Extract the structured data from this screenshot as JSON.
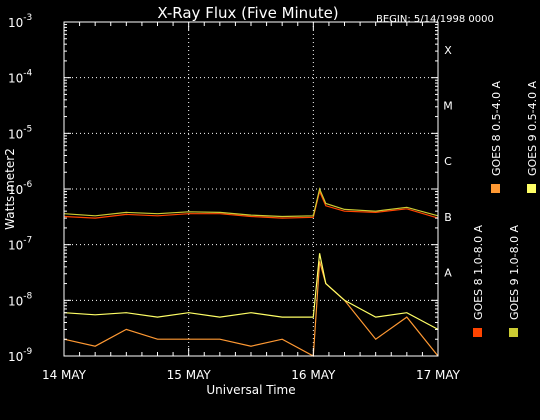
{
  "chart_data": {
    "type": "line",
    "title": "X-Ray Flux (Five Minute)",
    "begin_label": "BEGIN: 5/14/1998 0000",
    "xlabel": "Universal Time",
    "ylabel": "Watts meter2",
    "y_scale": "log",
    "ylim": [
      1e-09,
      0.001
    ],
    "y_ticks": [
      {
        "base": "10",
        "exp": "-3",
        "value": 0.001
      },
      {
        "base": "10",
        "exp": "-4",
        "value": 0.0001
      },
      {
        "base": "10",
        "exp": "-5",
        "value": 1e-05
      },
      {
        "base": "10",
        "exp": "-6",
        "value": 1e-06
      },
      {
        "base": "10",
        "exp": "-7",
        "value": 1e-07
      },
      {
        "base": "10",
        "exp": "-8",
        "value": 1e-08
      },
      {
        "base": "10",
        "exp": "-9",
        "value": 1e-09
      }
    ],
    "xlim": [
      "1998-05-14 00:00",
      "1998-05-17 00:00"
    ],
    "x_ticks": [
      {
        "label": "14 MAY",
        "day": 0
      },
      {
        "label": "15 MAY",
        "day": 1
      },
      {
        "label": "16 MAY",
        "day": 2
      },
      {
        "label": "17 MAY",
        "day": 3
      }
    ],
    "flare_classes": [
      {
        "label": "X",
        "value": 0.0001
      },
      {
        "label": "M",
        "value": 1e-05
      },
      {
        "label": "C",
        "value": 1e-06
      },
      {
        "label": "B",
        "value": 1e-07
      },
      {
        "label": "A",
        "value": 1e-08
      }
    ],
    "grid": true,
    "legend_position": "right-vertical",
    "series": [
      {
        "name": "GOES 8 1.0-8.0 A",
        "color": "#ff4400",
        "x": [
          0,
          0.25,
          0.5,
          0.75,
          1.0,
          1.25,
          1.5,
          1.75,
          2.0,
          2.05,
          2.1,
          2.25,
          2.5,
          2.75,
          3.0
        ],
        "y": [
          3.2e-07,
          3e-07,
          3.5e-07,
          3.3e-07,
          3.6e-07,
          3.6e-07,
          3.2e-07,
          3e-07,
          3.1e-07,
          9e-07,
          5e-07,
          4e-07,
          3.8e-07,
          4.4e-07,
          3e-07
        ]
      },
      {
        "name": "GOES 8 0.5-4.0 A",
        "color": "#ff9933",
        "x": [
          0,
          0.25,
          0.5,
          0.75,
          1.0,
          1.25,
          1.5,
          1.75,
          2.0,
          2.05,
          2.1,
          2.25,
          2.5,
          2.75,
          3.0
        ],
        "y": [
          2e-09,
          1.5e-09,
          3e-09,
          2e-09,
          2e-09,
          2e-09,
          1.5e-09,
          2e-09,
          1e-09,
          5e-08,
          2e-08,
          1e-08,
          2e-09,
          5e-09,
          1e-09
        ]
      },
      {
        "name": "GOES 9 0.5-4.0 A",
        "color": "#ffff66",
        "x": [
          0,
          0.25,
          0.5,
          0.75,
          1.0,
          1.25,
          1.5,
          1.75,
          2.0,
          2.05,
          2.1,
          2.25,
          2.5,
          2.75,
          3.0
        ],
        "y": [
          6e-09,
          5.5e-09,
          6e-09,
          5e-09,
          6e-09,
          5e-09,
          6e-09,
          5e-09,
          5e-09,
          7e-08,
          2e-08,
          1e-08,
          5e-09,
          6e-09,
          3e-09
        ]
      },
      {
        "name": "GOES 9 1.0-8.0 A",
        "color": "#cccc33",
        "x": [
          0,
          0.25,
          0.5,
          0.75,
          1.0,
          1.25,
          1.5,
          1.75,
          2.0,
          2.05,
          2.1,
          2.25,
          2.5,
          2.75,
          3.0
        ],
        "y": [
          3.6e-07,
          3.3e-07,
          3.8e-07,
          3.6e-07,
          3.9e-07,
          3.8e-07,
          3.4e-07,
          3.2e-07,
          3.3e-07,
          1e-06,
          5.5e-07,
          4.3e-07,
          4e-07,
          4.7e-07,
          3.3e-07
        ]
      }
    ]
  }
}
